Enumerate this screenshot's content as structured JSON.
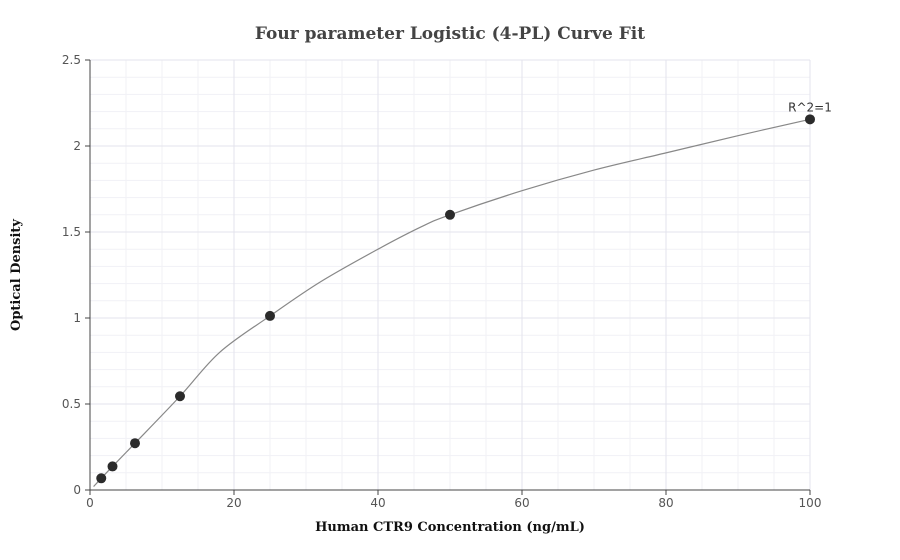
{
  "chart_data": {
    "type": "scatter",
    "title": "Four parameter Logistic (4-PL) Curve Fit",
    "xlabel": "Human CTR9 Concentration (ng/mL)",
    "ylabel": "Optical Density",
    "xlim": [
      0,
      100
    ],
    "ylim": [
      0,
      2.5
    ],
    "xticks": [
      0,
      20,
      40,
      60,
      80,
      100
    ],
    "yticks": [
      0,
      0.5,
      1,
      1.5,
      2,
      2.5
    ],
    "xtick_labels": [
      "0",
      "20",
      "40",
      "60",
      "80",
      "100"
    ],
    "ytick_labels": [
      "0",
      "0.5",
      "1",
      "1.5",
      "2",
      "2.5"
    ],
    "grid": true,
    "series": [
      {
        "x": [
          1.5625,
          3.125,
          6.25,
          12.5,
          25,
          50,
          100
        ],
        "y": [
          0.068,
          0.137,
          0.272,
          0.545,
          1.012,
          1.6,
          2.155
        ]
      }
    ],
    "fit_curve": {
      "x": [
        0.5,
        1.5625,
        3.125,
        6.25,
        12.5,
        18,
        25,
        32,
        40,
        46,
        50,
        60,
        70,
        80,
        90,
        100
      ],
      "y": [
        0.02,
        0.068,
        0.137,
        0.272,
        0.545,
        0.8,
        1.012,
        1.21,
        1.4,
        1.53,
        1.6,
        1.74,
        1.86,
        1.96,
        2.06,
        2.155
      ]
    },
    "annotation": {
      "text": "R^2=1",
      "x": 100,
      "y": 2.155
    }
  }
}
